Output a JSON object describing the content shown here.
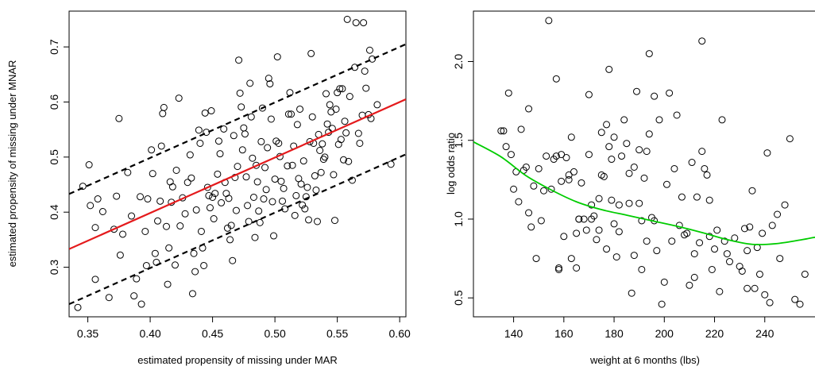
{
  "chart_data": [
    {
      "type": "scatter",
      "xlabel": "estimated propensity of missing under MAR",
      "ylabel": "estimated propensity of missing under MNAR",
      "xlim": [
        0.335,
        0.605
      ],
      "ylim": [
        0.21,
        0.765
      ],
      "xticks": [
        0.35,
        0.4,
        0.45,
        0.5,
        0.55,
        0.6
      ],
      "xtick_labels": [
        "0.35",
        "0.40",
        "0.45",
        "0.50",
        "0.55",
        "0.60"
      ],
      "yticks": [
        0.3,
        0.4,
        0.5,
        0.6,
        0.7
      ],
      "ytick_labels": [
        "0.3",
        "0.4",
        "0.5",
        "0.6",
        "0.7"
      ],
      "grid": false,
      "fit_line": {
        "x": [
          0.335,
          0.605
        ],
        "y": [
          0.333,
          0.605
        ],
        "color": "#e41a1c"
      },
      "bound_lines": [
        {
          "x": [
            0.335,
            0.605
          ],
          "y": [
            0.433,
            0.705
          ],
          "color": "#000000",
          "style": "dashed"
        },
        {
          "x": [
            0.335,
            0.605
          ],
          "y": [
            0.233,
            0.505
          ],
          "color": "#000000",
          "style": "dashed"
        }
      ],
      "points": [
        [
          0.342,
          0.227
        ],
        [
          0.346,
          0.447
        ],
        [
          0.351,
          0.486
        ],
        [
          0.352,
          0.412
        ],
        [
          0.356,
          0.372
        ],
        [
          0.356,
          0.278
        ],
        [
          0.358,
          0.424
        ],
        [
          0.362,
          0.401
        ],
        [
          0.367,
          0.245
        ],
        [
          0.371,
          0.369
        ],
        [
          0.373,
          0.429
        ],
        [
          0.375,
          0.57
        ],
        [
          0.376,
          0.322
        ],
        [
          0.378,
          0.36
        ],
        [
          0.382,
          0.472
        ],
        [
          0.385,
          0.393
        ],
        [
          0.387,
          0.248
        ],
        [
          0.389,
          0.279
        ],
        [
          0.392,
          0.428
        ],
        [
          0.393,
          0.233
        ],
        [
          0.396,
          0.365
        ],
        [
          0.397,
          0.303
        ],
        [
          0.398,
          0.424
        ],
        [
          0.401,
          0.513
        ],
        [
          0.402,
          0.47
        ],
        [
          0.404,
          0.325
        ],
        [
          0.405,
          0.309
        ],
        [
          0.406,
          0.384
        ],
        [
          0.408,
          0.42
        ],
        [
          0.409,
          0.52
        ],
        [
          0.41,
          0.579
        ],
        [
          0.411,
          0.59
        ],
        [
          0.413,
          0.374
        ],
        [
          0.414,
          0.269
        ],
        [
          0.415,
          0.335
        ],
        [
          0.416,
          0.455
        ],
        [
          0.417,
          0.418
        ],
        [
          0.418,
          0.446
        ],
        [
          0.42,
          0.304
        ],
        [
          0.421,
          0.476
        ],
        [
          0.423,
          0.607
        ],
        [
          0.424,
          0.375
        ],
        [
          0.426,
          0.426
        ],
        [
          0.428,
          0.397
        ],
        [
          0.43,
          0.454
        ],
        [
          0.432,
          0.504
        ],
        [
          0.433,
          0.462
        ],
        [
          0.434,
          0.252
        ],
        [
          0.435,
          0.325
        ],
        [
          0.436,
          0.292
        ],
        [
          0.437,
          0.404
        ],
        [
          0.439,
          0.549
        ],
        [
          0.44,
          0.525
        ],
        [
          0.441,
          0.365
        ],
        [
          0.442,
          0.335
        ],
        [
          0.443,
          0.303
        ],
        [
          0.444,
          0.58
        ],
        [
          0.445,
          0.545
        ],
        [
          0.446,
          0.445
        ],
        [
          0.447,
          0.43
        ],
        [
          0.448,
          0.408
        ],
        [
          0.449,
          0.584
        ],
        [
          0.45,
          0.427
        ],
        [
          0.451,
          0.388
        ],
        [
          0.452,
          0.434
        ],
        [
          0.454,
          0.469
        ],
        [
          0.455,
          0.529
        ],
        [
          0.456,
          0.506
        ],
        [
          0.457,
          0.417
        ],
        [
          0.459,
          0.551
        ],
        [
          0.46,
          0.454
        ],
        [
          0.461,
          0.434
        ],
        [
          0.462,
          0.371
        ],
        [
          0.463,
          0.425
        ],
        [
          0.464,
          0.35
        ],
        [
          0.465,
          0.376
        ],
        [
          0.466,
          0.312
        ],
        [
          0.467,
          0.539
        ],
        [
          0.468,
          0.463
        ],
        [
          0.469,
          0.403
        ],
        [
          0.47,
          0.483
        ],
        [
          0.471,
          0.676
        ],
        [
          0.472,
          0.616
        ],
        [
          0.473,
          0.591
        ],
        [
          0.474,
          0.513
        ],
        [
          0.475,
          0.553
        ],
        [
          0.476,
          0.542
        ],
        [
          0.477,
          0.464
        ],
        [
          0.478,
          0.412
        ],
        [
          0.479,
          0.383
        ],
        [
          0.48,
          0.634
        ],
        [
          0.481,
          0.573
        ],
        [
          0.482,
          0.498
        ],
        [
          0.483,
          0.427
        ],
        [
          0.484,
          0.354
        ],
        [
          0.485,
          0.485
        ],
        [
          0.486,
          0.455
        ],
        [
          0.487,
          0.402
        ],
        [
          0.488,
          0.381
        ],
        [
          0.489,
          0.528
        ],
        [
          0.49,
          0.589
        ],
        [
          0.491,
          0.424
        ],
        [
          0.492,
          0.481
        ],
        [
          0.493,
          0.441
        ],
        [
          0.494,
          0.517
        ],
        [
          0.495,
          0.643
        ],
        [
          0.496,
          0.633
        ],
        [
          0.497,
          0.569
        ],
        [
          0.498,
          0.419
        ],
        [
          0.499,
          0.357
        ],
        [
          0.5,
          0.46
        ],
        [
          0.501,
          0.529
        ],
        [
          0.502,
          0.682
        ],
        [
          0.503,
          0.525
        ],
        [
          0.504,
          0.501
        ],
        [
          0.505,
          0.456
        ],
        [
          0.506,
          0.42
        ],
        [
          0.507,
          0.443
        ],
        [
          0.508,
          0.406
        ],
        [
          0.51,
          0.484
        ],
        [
          0.511,
          0.578
        ],
        [
          0.512,
          0.617
        ],
        [
          0.513,
          0.578
        ],
        [
          0.514,
          0.485
        ],
        [
          0.515,
          0.52
        ],
        [
          0.516,
          0.394
        ],
        [
          0.517,
          0.43
        ],
        [
          0.518,
          0.559
        ],
        [
          0.519,
          0.461
        ],
        [
          0.52,
          0.587
        ],
        [
          0.521,
          0.451
        ],
        [
          0.522,
          0.413
        ],
        [
          0.523,
          0.493
        ],
        [
          0.524,
          0.406
        ],
        [
          0.525,
          0.428
        ],
        [
          0.526,
          0.445
        ],
        [
          0.527,
          0.386
        ],
        [
          0.528,
          0.528
        ],
        [
          0.529,
          0.688
        ],
        [
          0.53,
          0.573
        ],
        [
          0.531,
          0.525
        ],
        [
          0.532,
          0.466
        ],
        [
          0.533,
          0.44
        ],
        [
          0.534,
          0.383
        ],
        [
          0.535,
          0.541
        ],
        [
          0.536,
          0.512
        ],
        [
          0.537,
          0.472
        ],
        [
          0.538,
          0.524
        ],
        [
          0.539,
          0.496
        ],
        [
          0.54,
          0.5
        ],
        [
          0.541,
          0.615
        ],
        [
          0.542,
          0.56
        ],
        [
          0.543,
          0.545
        ],
        [
          0.544,
          0.595
        ],
        [
          0.545,
          0.582
        ],
        [
          0.546,
          0.552
        ],
        [
          0.547,
          0.468
        ],
        [
          0.548,
          0.385
        ],
        [
          0.549,
          0.587
        ],
        [
          0.55,
          0.617
        ],
        [
          0.551,
          0.523
        ],
        [
          0.552,
          0.624
        ],
        [
          0.553,
          0.532
        ],
        [
          0.554,
          0.624
        ],
        [
          0.555,
          0.495
        ],
        [
          0.556,
          0.565
        ],
        [
          0.557,
          0.544
        ],
        [
          0.558,
          0.75
        ],
        [
          0.559,
          0.492
        ],
        [
          0.56,
          0.61
        ],
        [
          0.562,
          0.458
        ],
        [
          0.564,
          0.663
        ],
        [
          0.565,
          0.744
        ],
        [
          0.567,
          0.543
        ],
        [
          0.568,
          0.525
        ],
        [
          0.57,
          0.576
        ],
        [
          0.571,
          0.744
        ],
        [
          0.572,
          0.656
        ],
        [
          0.573,
          0.625
        ],
        [
          0.575,
          0.577
        ],
        [
          0.576,
          0.694
        ],
        [
          0.577,
          0.57
        ],
        [
          0.578,
          0.678
        ],
        [
          0.582,
          0.595
        ],
        [
          0.593,
          0.487
        ]
      ]
    },
    {
      "type": "scatter",
      "xlabel": "weight at 6 months (lbs)",
      "ylabel": "log odds ratio",
      "xlim": [
        124,
        260
      ],
      "ylim": [
        0.38,
        2.32
      ],
      "xticks": [
        140,
        160,
        180,
        200,
        220,
        240
      ],
      "xtick_labels": [
        "140",
        "160",
        "180",
        "200",
        "220",
        "240"
      ],
      "yticks": [
        0.5,
        1.0,
        1.5,
        2.0
      ],
      "ytick_labels": [
        "0.5",
        "1.0",
        "1.5",
        "2.0"
      ],
      "grid": false,
      "smooth_line": {
        "color": "#00cc00",
        "x": [
          124,
          135,
          145,
          155,
          165,
          175,
          185,
          195,
          205,
          215,
          225,
          235,
          245,
          255,
          260
        ],
        "y": [
          1.49,
          1.395,
          1.275,
          1.185,
          1.11,
          1.06,
          1.025,
          0.99,
          0.955,
          0.915,
          0.87,
          0.84,
          0.845,
          0.87,
          0.885
        ]
      },
      "points": [
        [
          135,
          1.56
        ],
        [
          136,
          1.56
        ],
        [
          137,
          1.46
        ],
        [
          138,
          1.8
        ],
        [
          139,
          1.41
        ],
        [
          140,
          1.19
        ],
        [
          141,
          1.3
        ],
        [
          142,
          1.11
        ],
        [
          143,
          1.57
        ],
        [
          144,
          1.31
        ],
        [
          145,
          1.33
        ],
        [
          146,
          1.7
        ],
        [
          146,
          1.04
        ],
        [
          147,
          0.95
        ],
        [
          148,
          1.21
        ],
        [
          149,
          0.75
        ],
        [
          150,
          1.32
        ],
        [
          151,
          0.99
        ],
        [
          152,
          1.18
        ],
        [
          153,
          1.4
        ],
        [
          154,
          2.26
        ],
        [
          155,
          1.19
        ],
        [
          156,
          1.38
        ],
        [
          157,
          1.4
        ],
        [
          157,
          1.89
        ],
        [
          158,
          0.69
        ],
        [
          158,
          0.68
        ],
        [
          159,
          1.41
        ],
        [
          159,
          1.24
        ],
        [
          160,
          0.89
        ],
        [
          161,
          1.39
        ],
        [
          162,
          1.28
        ],
        [
          162,
          1.25
        ],
        [
          163,
          1.52
        ],
        [
          163,
          0.75
        ],
        [
          164,
          1.3
        ],
        [
          165,
          0.69
        ],
        [
          165,
          0.91
        ],
        [
          166,
          1.0
        ],
        [
          166,
          1.0
        ],
        [
          167,
          1.23
        ],
        [
          168,
          1.0
        ],
        [
          169,
          0.93
        ],
        [
          170,
          1.79
        ],
        [
          170,
          1.41
        ],
        [
          171,
          1.09
        ],
        [
          171,
          1.0
        ],
        [
          172,
          1.02
        ],
        [
          173,
          0.87
        ],
        [
          174,
          1.13
        ],
        [
          174,
          0.93
        ],
        [
          175,
          1.28
        ],
        [
          175,
          1.55
        ],
        [
          176,
          1.27
        ],
        [
          177,
          1.6
        ],
        [
          177,
          0.81
        ],
        [
          178,
          1.95
        ],
        [
          178,
          1.46
        ],
        [
          179,
          1.38
        ],
        [
          179,
          1.12
        ],
        [
          180,
          1.52
        ],
        [
          180,
          0.97
        ],
        [
          181,
          0.76
        ],
        [
          182,
          1.09
        ],
        [
          182,
          0.92
        ],
        [
          183,
          1.4
        ],
        [
          184,
          1.63
        ],
        [
          185,
          1.48
        ],
        [
          186,
          1.1
        ],
        [
          186,
          1.29
        ],
        [
          187,
          0.53
        ],
        [
          188,
          0.77
        ],
        [
          188,
          1.33
        ],
        [
          189,
          1.81
        ],
        [
          190,
          1.44
        ],
        [
          190,
          1.1
        ],
        [
          191,
          0.99
        ],
        [
          191,
          0.68
        ],
        [
          192,
          1.26
        ],
        [
          193,
          1.43
        ],
        [
          193,
          0.86
        ],
        [
          194,
          2.05
        ],
        [
          194,
          1.54
        ],
        [
          195,
          1.01
        ],
        [
          196,
          1.78
        ],
        [
          196,
          0.99
        ],
        [
          197,
          0.8
        ],
        [
          198,
          1.63
        ],
        [
          199,
          0.46
        ],
        [
          200,
          0.6
        ],
        [
          201,
          1.22
        ],
        [
          202,
          1.8
        ],
        [
          203,
          0.86
        ],
        [
          204,
          1.32
        ],
        [
          205,
          1.66
        ],
        [
          206,
          0.96
        ],
        [
          207,
          1.14
        ],
        [
          208,
          0.9
        ],
        [
          209,
          0.91
        ],
        [
          210,
          0.58
        ],
        [
          211,
          1.36
        ],
        [
          212,
          0.63
        ],
        [
          212,
          0.78
        ],
        [
          213,
          1.14
        ],
        [
          214,
          0.85
        ],
        [
          215,
          2.13
        ],
        [
          215,
          1.43
        ],
        [
          216,
          1.32
        ],
        [
          217,
          1.28
        ],
        [
          218,
          0.89
        ],
        [
          218,
          1.12
        ],
        [
          219,
          0.68
        ],
        [
          220,
          0.81
        ],
        [
          221,
          0.93
        ],
        [
          222,
          0.54
        ],
        [
          223,
          1.63
        ],
        [
          224,
          0.86
        ],
        [
          225,
          0.78
        ],
        [
          226,
          0.73
        ],
        [
          228,
          0.88
        ],
        [
          230,
          0.7
        ],
        [
          231,
          0.67
        ],
        [
          232,
          0.94
        ],
        [
          233,
          0.8
        ],
        [
          233,
          0.56
        ],
        [
          234,
          0.95
        ],
        [
          235,
          1.18
        ],
        [
          236,
          0.56
        ],
        [
          237,
          0.82
        ],
        [
          238,
          0.65
        ],
        [
          239,
          0.91
        ],
        [
          240,
          0.52
        ],
        [
          241,
          1.42
        ],
        [
          242,
          0.47
        ],
        [
          243,
          0.96
        ],
        [
          245,
          1.03
        ],
        [
          246,
          0.75
        ],
        [
          248,
          1.09
        ],
        [
          250,
          1.51
        ],
        [
          252,
          0.49
        ],
        [
          254,
          0.46
        ],
        [
          256,
          0.65
        ]
      ]
    }
  ]
}
